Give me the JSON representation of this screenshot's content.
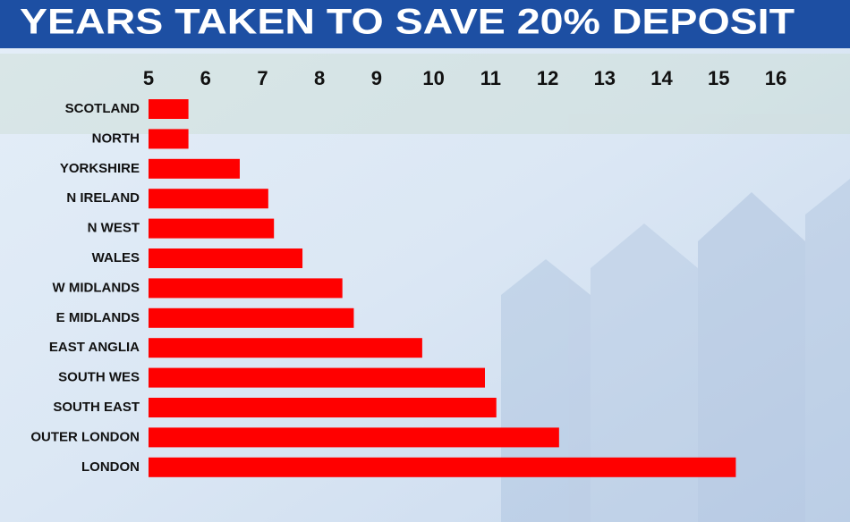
{
  "chart_data": {
    "type": "bar",
    "orientation": "horizontal",
    "title": "YEARS TAKEN TO SAVE 20% DEPOSIT",
    "categories": [
      "SCOTLAND",
      "NORTH",
      "YORKSHIRE",
      "N IRELAND",
      "N WEST",
      "WALES",
      "W MIDLANDS",
      "E MIDLANDS",
      "EAST ANGLIA",
      "SOUTH WES",
      "SOUTH EAST",
      "OUTER LONDON",
      "LONDON"
    ],
    "values": [
      5.7,
      5.7,
      6.6,
      7.1,
      7.2,
      7.7,
      8.4,
      8.6,
      9.8,
      10.9,
      11.1,
      12.2,
      15.3
    ],
    "color": "#ff0000",
    "xlim": [
      5,
      16
    ],
    "xticks": [
      5,
      6,
      7,
      8,
      9,
      10,
      11,
      12,
      13,
      14,
      15,
      16
    ]
  }
}
